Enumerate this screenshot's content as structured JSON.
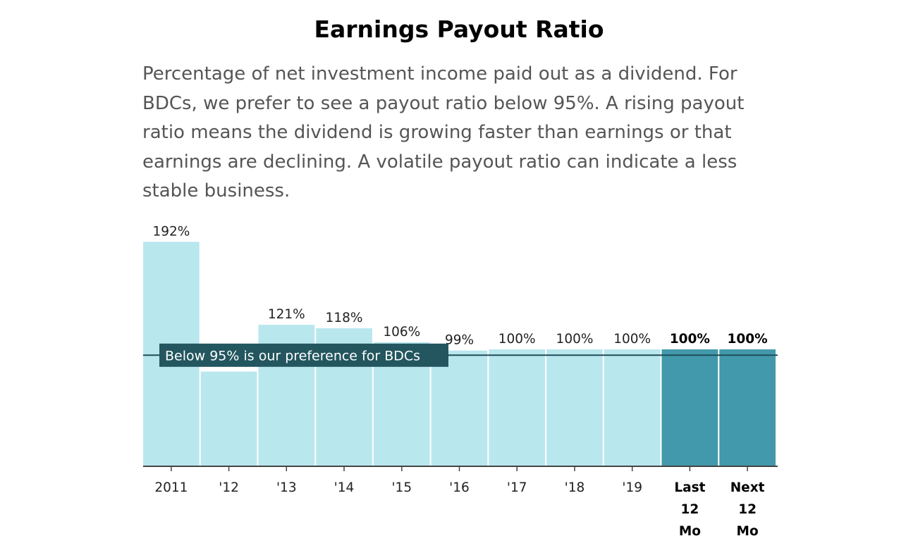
{
  "page": {
    "title": "Earnings Payout Ratio",
    "description": "Percentage of net investment income paid out as a dividend. For BDCs, we prefer to see a payout ratio below 95%. A rising payout ratio means the dividend is growing faster than earnings or that earnings are declining. A volatile payout ratio can indicate a less stable business."
  },
  "chart_data": {
    "type": "bar",
    "title": "",
    "xlabel": "",
    "ylabel": "",
    "ylim": [
      0,
      192
    ],
    "grid": false,
    "categories": [
      "2011",
      "'12",
      "'13",
      "'14",
      "'15",
      "'16",
      "'17",
      "'18",
      "'19",
      "Last 12 Mo",
      "Next 12 Mo"
    ],
    "tick_label_lines": [
      [
        "2011"
      ],
      [
        "'12"
      ],
      [
        "'13"
      ],
      [
        "'14"
      ],
      [
        "'15"
      ],
      [
        "'16"
      ],
      [
        "'17"
      ],
      [
        "'18"
      ],
      [
        "'19"
      ],
      [
        "Last",
        "12",
        "Mo"
      ],
      [
        "Next",
        "12",
        "Mo"
      ]
    ],
    "values": [
      192,
      81,
      121,
      118,
      106,
      99,
      100,
      100,
      100,
      100,
      100
    ],
    "data_labels": [
      "192%",
      "",
      "121%",
      "118%",
      "106%",
      "99%",
      "100%",
      "100%",
      "100%",
      "100%",
      "100%"
    ],
    "highlighted": [
      false,
      false,
      false,
      false,
      false,
      false,
      false,
      false,
      false,
      true,
      true
    ],
    "reference_line": {
      "value": 95,
      "label": "Below 95% is our preference for BDCs"
    },
    "colors": {
      "bar": "#b9e7ee",
      "bar_highlight": "#4299ab",
      "reference_line": "#1f4e5a",
      "annotation_bg": "#23565f",
      "axis": "#444444"
    }
  }
}
